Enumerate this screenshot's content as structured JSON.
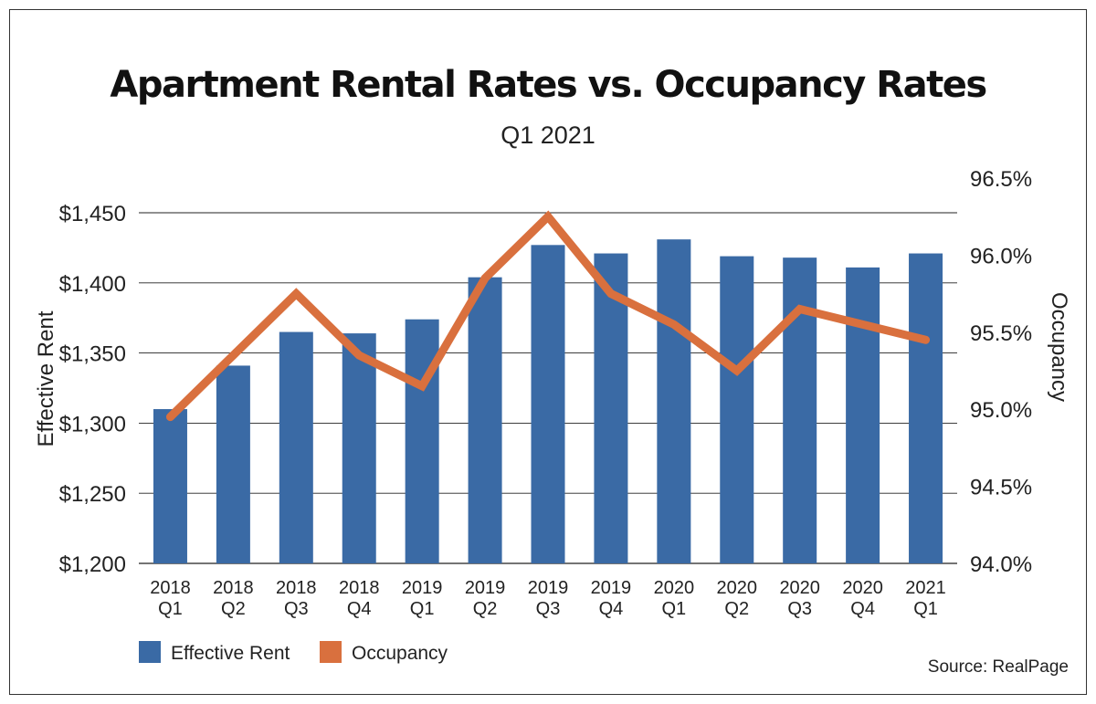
{
  "chart_data": {
    "type": "bar+line",
    "title": "Apartment Rental Rates vs. Occupancy Rates",
    "subtitle": "Q1 2021",
    "source": "Source: RealPage",
    "categories": [
      [
        "2018",
        "Q1"
      ],
      [
        "2018",
        "Q2"
      ],
      [
        "2018",
        "Q3"
      ],
      [
        "2018",
        "Q4"
      ],
      [
        "2019",
        "Q1"
      ],
      [
        "2019",
        "Q2"
      ],
      [
        "2019",
        "Q3"
      ],
      [
        "2019",
        "Q4"
      ],
      [
        "2020",
        "Q1"
      ],
      [
        "2020",
        "Q2"
      ],
      [
        "2020",
        "Q3"
      ],
      [
        "2020",
        "Q4"
      ],
      [
        "2021",
        "Q1"
      ]
    ],
    "series": [
      {
        "name": "Effective Rent",
        "type": "bar",
        "axis": "left",
        "color": "#3a6aa5",
        "values": [
          1310,
          1341,
          1365,
          1364,
          1374,
          1404,
          1427,
          1421,
          1431,
          1419,
          1418,
          1411,
          1421
        ]
      },
      {
        "name": "Occupancy",
        "type": "line",
        "axis": "right",
        "color": "#d9703e",
        "values": [
          94.95,
          95.35,
          95.75,
          95.35,
          95.15,
          95.85,
          96.25,
          95.75,
          95.55,
          95.25,
          95.65,
          95.55,
          95.45
        ]
      }
    ],
    "y_left": {
      "label": "Effective Rent",
      "min": 1200,
      "max": 1450,
      "ticks": [
        1200,
        1250,
        1300,
        1350,
        1400,
        1450
      ],
      "tick_labels": [
        "$1,200",
        "$1,250",
        "$1,300",
        "$1,350",
        "$1,400",
        "$1,450"
      ]
    },
    "y_right": {
      "label": "Occupancy",
      "min": 94.0,
      "max": 96.5,
      "ticks": [
        94.0,
        94.5,
        95.0,
        95.5,
        96.0,
        96.5
      ],
      "tick_labels": [
        "94.0%",
        "94.5%",
        "95.0%",
        "95.5%",
        "96.0%",
        "96.5%"
      ]
    },
    "legend": [
      "Effective Rent",
      "Occupancy"
    ],
    "legend_position": "bottom-left",
    "grid": true
  }
}
